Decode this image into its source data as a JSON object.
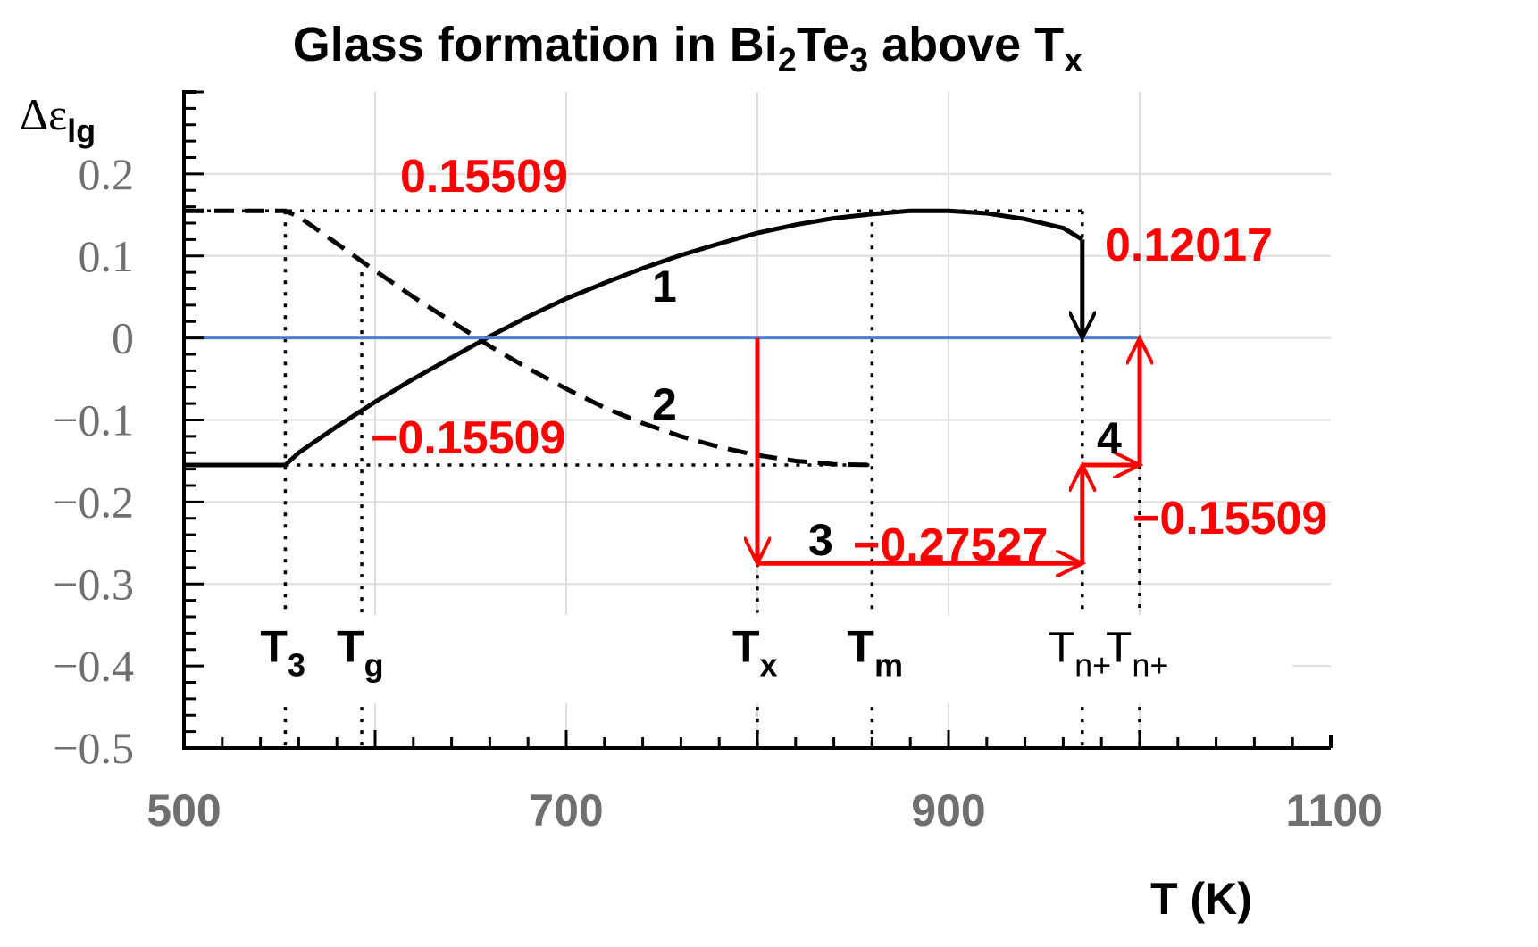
{
  "chart_data": {
    "type": "line",
    "title": {
      "pre": "Glass formation in Bi",
      "sub1": "2",
      "mid": "Te",
      "sub2": "3",
      "post": " above T",
      "sub3": "x"
    },
    "ylabel": {
      "main": "Δε",
      "sub": "lg"
    },
    "xlabel": "T (K)",
    "xlim": [
      500,
      1100
    ],
    "ylim": [
      -0.5,
      0.3
    ],
    "xticks": [
      "500",
      "700",
      "900",
      "1100"
    ],
    "yticks": [
      "0.2",
      "0.1",
      "0",
      "−0.1",
      "−0.2",
      "−0.3",
      "−0.4",
      "−0.5"
    ],
    "grid": true,
    "series": [
      {
        "name": "1",
        "style": "solid",
        "color": "#000000",
        "x": [
          500,
          553,
          560,
          580,
          600,
          620,
          640,
          660,
          680,
          700,
          720,
          740,
          760,
          780,
          800,
          820,
          840,
          860,
          880,
          900,
          920,
          940,
          960,
          970
        ],
        "y": [
          -0.155,
          -0.155,
          -0.14,
          -0.108,
          -0.078,
          -0.05,
          -0.024,
          0.002,
          0.026,
          0.048,
          0.067,
          0.085,
          0.101,
          0.115,
          0.128,
          0.138,
          0.146,
          0.151,
          0.155,
          0.155,
          0.152,
          0.145,
          0.134,
          0.12
        ]
      },
      {
        "name": "2",
        "style": "dashed",
        "color": "#000000",
        "x": [
          500,
          553,
          560,
          580,
          600,
          620,
          640,
          660,
          680,
          700,
          720,
          740,
          760,
          780,
          800,
          820,
          840,
          860
        ],
        "y": [
          0.155,
          0.155,
          0.148,
          0.115,
          0.082,
          0.05,
          0.02,
          -0.01,
          -0.037,
          -0.062,
          -0.085,
          -0.104,
          -0.12,
          -0.133,
          -0.143,
          -0.15,
          -0.154,
          -0.155
        ]
      },
      {
        "name": "",
        "style": "solid",
        "color": "#4a7fd4",
        "x": [
          500,
          1000
        ],
        "y": [
          0,
          0
        ]
      }
    ],
    "arrows": [
      {
        "color": "#000000",
        "from": [
          970,
          0.12
        ],
        "to": [
          970,
          0.0
        ]
      },
      {
        "color": "#ff0000",
        "from": [
          800,
          0.0
        ],
        "to": [
          800,
          -0.275
        ]
      },
      {
        "color": "#ff0000",
        "from": [
          800,
          -0.275
        ],
        "to": [
          970,
          -0.275
        ]
      },
      {
        "color": "#ff0000",
        "from": [
          970,
          -0.275
        ],
        "to": [
          970,
          -0.155
        ]
      },
      {
        "color": "#ff0000",
        "from": [
          970,
          -0.155
        ],
        "to": [
          1000,
          -0.155
        ]
      },
      {
        "color": "#ff0000",
        "from": [
          1000,
          -0.155
        ],
        "to": [
          1000,
          0.0
        ]
      }
    ],
    "annotations": {
      "a1": "0.15509",
      "a2": "0.12017",
      "a3": "−0.15509",
      "a4": "−0.27527",
      "a5": "−0.15509",
      "n1": "1",
      "n2": "2",
      "n3": "3",
      "n4": "4"
    },
    "temperature_marks": [
      {
        "main": "T",
        "sub": "3",
        "x": 553
      },
      {
        "main": "T",
        "sub": "g",
        "x": 593
      },
      {
        "main": "T",
        "sub": "x",
        "x": 800
      },
      {
        "main": "T",
        "sub": "m",
        "x": 860
      },
      {
        "main": "T",
        "sub": "n+",
        "x": 970
      },
      {
        "main": "T",
        "sub": "n+",
        "x": 1000
      }
    ]
  }
}
